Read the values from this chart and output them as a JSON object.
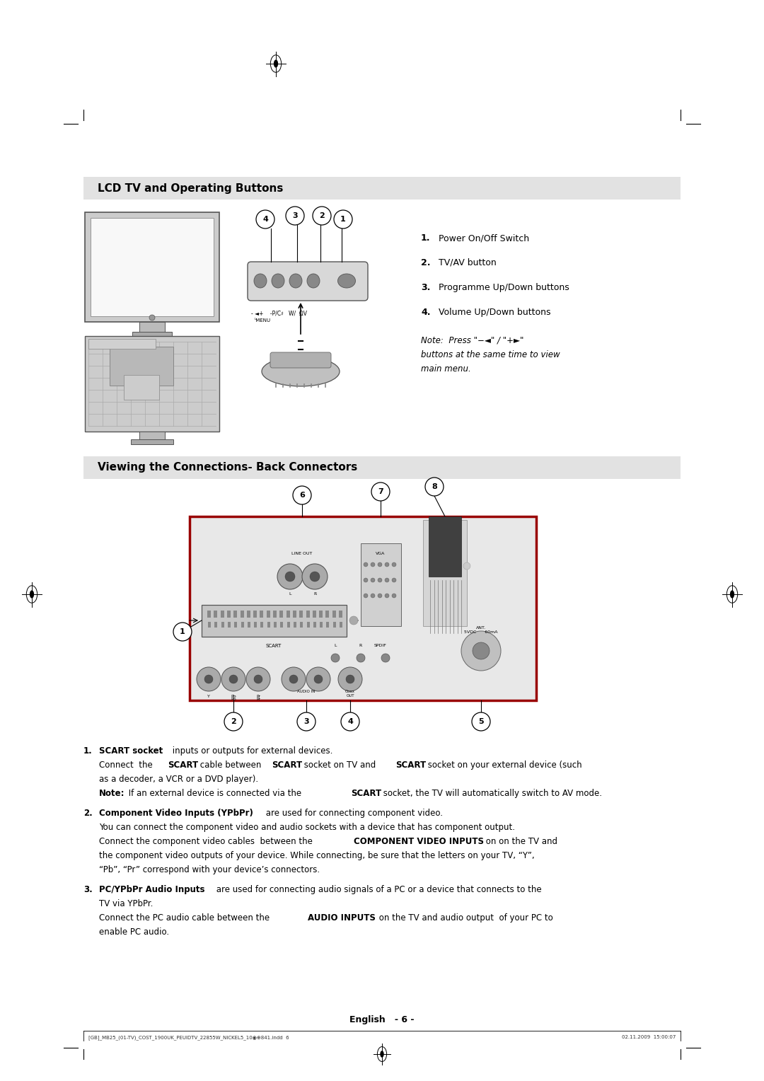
{
  "bg_color": "#ffffff",
  "page_width": 10.8,
  "page_height": 15.28,
  "section1_title": "LCD TV and Operating Buttons",
  "section1_title_bg": "#e2e2e2",
  "section2_title": "Viewing the Connections- Back Connectors",
  "section2_title_bg": "#e2e2e2",
  "numbered_items_section1": [
    "Power On/Off Switch",
    "TV/AV button",
    "Programme Up/Down buttons",
    "Volume Up/Down buttons"
  ],
  "footer_center": "English   - 6 -",
  "footer_left": "[GB]_MB25_(01-TV)_COST_1900UK_PEUIDTV_22855W_NICKEL5_10◉⊕841.indd  6",
  "footer_right": "02.11.2009  15:00:07"
}
